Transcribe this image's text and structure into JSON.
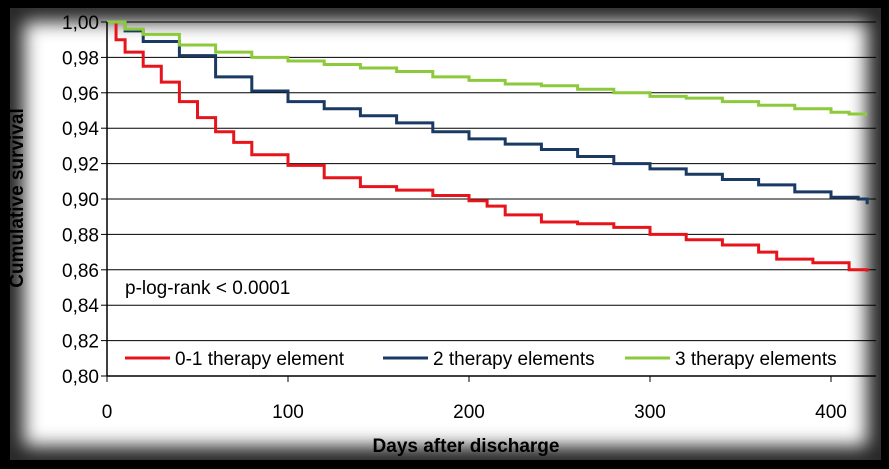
{
  "chart_data": {
    "type": "line",
    "title": "",
    "xlabel": "Days after discharge",
    "ylabel": "Cumulative survival",
    "xlim": [
      0,
      420
    ],
    "ylim": [
      0.8,
      1.0
    ],
    "x_ticks": [
      "0",
      "100",
      "200",
      "300",
      "400"
    ],
    "y_ticks": [
      "0,80",
      "0,82",
      "0,84",
      "0,86",
      "0,88",
      "0,90",
      "0,92",
      "0,94",
      "0,96",
      "0,98",
      "1,00"
    ],
    "grid": true,
    "legend_position": "bottom",
    "annotation": "p-log-rank < 0.0001",
    "series": [
      {
        "name": "0-1 therapy element",
        "color": "#e8141c",
        "points": [
          [
            0,
            1.0
          ],
          [
            5,
            0.99
          ],
          [
            10,
            0.983
          ],
          [
            20,
            0.975
          ],
          [
            30,
            0.966
          ],
          [
            40,
            0.955
          ],
          [
            50,
            0.946
          ],
          [
            60,
            0.938
          ],
          [
            70,
            0.932
          ],
          [
            80,
            0.925
          ],
          [
            100,
            0.919
          ],
          [
            120,
            0.912
          ],
          [
            140,
            0.907
          ],
          [
            160,
            0.905
          ],
          [
            180,
            0.902
          ],
          [
            200,
            0.899
          ],
          [
            210,
            0.896
          ],
          [
            220,
            0.891
          ],
          [
            240,
            0.887
          ],
          [
            260,
            0.886
          ],
          [
            280,
            0.884
          ],
          [
            300,
            0.88
          ],
          [
            320,
            0.877
          ],
          [
            340,
            0.874
          ],
          [
            360,
            0.87
          ],
          [
            370,
            0.866
          ],
          [
            390,
            0.864
          ],
          [
            410,
            0.86
          ],
          [
            420,
            0.859
          ]
        ]
      },
      {
        "name": "2 therapy elements",
        "color": "#1a3a64",
        "points": [
          [
            0,
            1.0
          ],
          [
            10,
            0.995
          ],
          [
            20,
            0.989
          ],
          [
            40,
            0.981
          ],
          [
            60,
            0.969
          ],
          [
            80,
            0.961
          ],
          [
            100,
            0.955
          ],
          [
            120,
            0.951
          ],
          [
            140,
            0.947
          ],
          [
            160,
            0.943
          ],
          [
            180,
            0.938
          ],
          [
            200,
            0.934
          ],
          [
            220,
            0.931
          ],
          [
            240,
            0.928
          ],
          [
            260,
            0.924
          ],
          [
            280,
            0.92
          ],
          [
            300,
            0.917
          ],
          [
            320,
            0.914
          ],
          [
            340,
            0.911
          ],
          [
            360,
            0.908
          ],
          [
            380,
            0.904
          ],
          [
            400,
            0.901
          ],
          [
            415,
            0.9
          ],
          [
            420,
            0.897
          ]
        ]
      },
      {
        "name": "3 therapy elements",
        "color": "#8cca3c",
        "points": [
          [
            0,
            1.0
          ],
          [
            10,
            0.996
          ],
          [
            20,
            0.993
          ],
          [
            40,
            0.987
          ],
          [
            60,
            0.983
          ],
          [
            80,
            0.98
          ],
          [
            100,
            0.978
          ],
          [
            120,
            0.976
          ],
          [
            140,
            0.974
          ],
          [
            160,
            0.972
          ],
          [
            180,
            0.969
          ],
          [
            200,
            0.967
          ],
          [
            220,
            0.965
          ],
          [
            240,
            0.964
          ],
          [
            260,
            0.962
          ],
          [
            280,
            0.96
          ],
          [
            300,
            0.958
          ],
          [
            320,
            0.957
          ],
          [
            340,
            0.955
          ],
          [
            360,
            0.953
          ],
          [
            380,
            0.951
          ],
          [
            400,
            0.949
          ],
          [
            410,
            0.948
          ],
          [
            420,
            0.948
          ]
        ]
      }
    ]
  }
}
